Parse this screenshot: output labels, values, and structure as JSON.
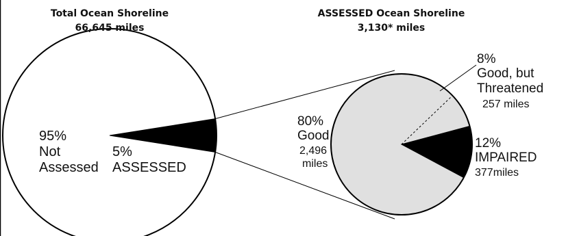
{
  "chart_data": [
    {
      "type": "pie",
      "title": "Total Ocean Shoreline",
      "subtitle": "66,645 miles",
      "slices": [
        {
          "key": "not-assessed",
          "percent_label": "95%",
          "line1": "Not",
          "line2": "Assessed",
          "value": 95,
          "fill": "#ffffff"
        },
        {
          "key": "assessed",
          "percent_label": "5%",
          "line1": "ASSESSED",
          "line2": "",
          "value": 5,
          "fill": "#000000"
        }
      ]
    },
    {
      "type": "pie",
      "title": "ASSESSED Ocean Shoreline",
      "subtitle": "3,130* miles",
      "slices": [
        {
          "key": "good",
          "percent_label": "80%",
          "line1": "Good",
          "line2": "2,496",
          "line3": "miles",
          "value": 80,
          "miles": 2496,
          "fill": "#e0e0e0"
        },
        {
          "key": "good-threatened",
          "percent_label": "8%",
          "line1": "Good, but",
          "line2": "Threatened",
          "line3": "257 miles",
          "value": 8,
          "miles": 257,
          "fill": "#e0e0e0"
        },
        {
          "key": "impaired",
          "percent_label": "12%",
          "line1": "IMPAIRED",
          "line2": "377miles",
          "value": 12,
          "miles": 377,
          "fill": "#000000"
        }
      ]
    }
  ],
  "colors": {
    "outline": "#000000",
    "good": "#e0e0e0",
    "impaired": "#000000",
    "assessed": "#000000",
    "not_assessed": "#ffffff"
  }
}
